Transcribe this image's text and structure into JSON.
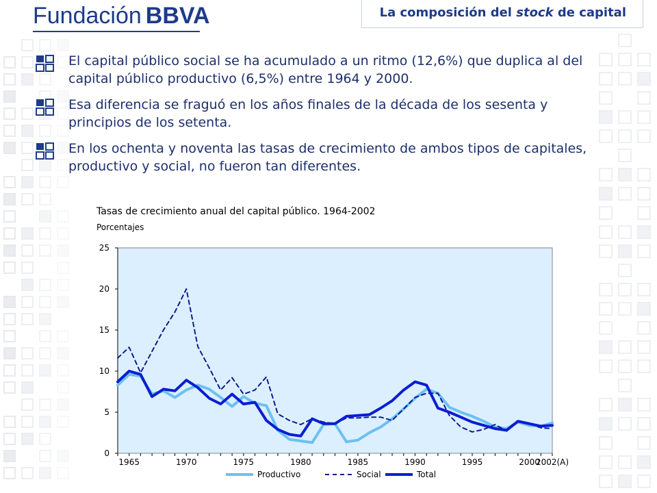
{
  "header": {
    "logo_text": "Fundación",
    "logo_brand": "BBVA",
    "title_pre": "La composición del ",
    "title_em": "stock",
    "title_post": " de capital"
  },
  "bullets": [
    {
      "text": "El capital público social se ha acumulado a un ritmo (12,6%) que duplica al del capital público productivo (6,5%) entre 1964 y 2000."
    },
    {
      "text": "Esa diferencia se fraguó en los años finales de la década de los sesenta y principios de los setenta."
    },
    {
      "text": "En los ochenta y noventa las tasas de crecimiento de ambos tipos de capitales, productivo y social, no fueron tan diferentes."
    }
  ],
  "colors": {
    "brand": "#1d3b8a",
    "plot_bg": "#dcefff",
    "productivo": "#6cc0f0",
    "social": "#0a1e8c",
    "total": "#0a1ed2"
  },
  "chart_data": {
    "type": "line",
    "title": "Tasas de crecimiento anual del capital público. 1964-2002",
    "subtitle": "Porcentajes",
    "xlabel": "",
    "ylabel": "",
    "x": [
      1964,
      1965,
      1966,
      1967,
      1968,
      1969,
      1970,
      1971,
      1972,
      1973,
      1974,
      1975,
      1976,
      1977,
      1978,
      1979,
      1980,
      1981,
      1982,
      1983,
      1984,
      1985,
      1986,
      1987,
      1988,
      1989,
      1990,
      1991,
      1992,
      1993,
      1994,
      1995,
      1996,
      1997,
      1998,
      1999,
      2000,
      2001,
      2002
    ],
    "x_ticks": [
      {
        "value": 1965,
        "label": "1965"
      },
      {
        "value": 1970,
        "label": "1970"
      },
      {
        "value": 1975,
        "label": "1975"
      },
      {
        "value": 1980,
        "label": "1980"
      },
      {
        "value": 1985,
        "label": "1985"
      },
      {
        "value": 1990,
        "label": "1990"
      },
      {
        "value": 1995,
        "label": "1995"
      },
      {
        "value": 2000,
        "label": "2000"
      },
      {
        "value": 2002,
        "label": "2002(A)"
      }
    ],
    "xlim": [
      1964,
      2002
    ],
    "ylim": [
      0,
      25
    ],
    "y_ticks": [
      0,
      5,
      10,
      15,
      20,
      25
    ],
    "legend_position": "bottom",
    "series": [
      {
        "name": "Productivo",
        "style": "solid-light",
        "values": [
          8.3,
          9.6,
          9.4,
          7.2,
          7.6,
          6.8,
          7.7,
          8.3,
          7.8,
          6.8,
          5.7,
          6.9,
          6.1,
          5.8,
          2.8,
          1.7,
          1.5,
          1.3,
          3.5,
          3.6,
          1.4,
          1.6,
          2.5,
          3.2,
          4.2,
          5.4,
          6.7,
          7.8,
          7.3,
          5.6,
          5.0,
          4.5,
          3.9,
          3.2,
          3.0,
          3.8,
          3.4,
          3.3,
          3.7
        ]
      },
      {
        "name": "Social",
        "style": "dashed",
        "values": [
          11.6,
          12.9,
          9.8,
          12.4,
          15.0,
          17.2,
          20.0,
          13.0,
          10.4,
          7.7,
          9.2,
          7.2,
          7.7,
          9.3,
          4.8,
          4.0,
          3.5,
          4.2,
          3.8,
          3.6,
          4.3,
          4.3,
          4.4,
          4.4,
          4.0,
          5.4,
          6.8,
          7.3,
          7.3,
          4.6,
          3.2,
          2.6,
          2.9,
          3.5,
          2.7,
          3.9,
          3.6,
          3.1,
          3.0
        ]
      },
      {
        "name": "Total",
        "style": "solid-thick",
        "values": [
          8.7,
          10.0,
          9.6,
          6.9,
          7.8,
          7.6,
          8.9,
          8.0,
          6.7,
          6.0,
          7.2,
          6.0,
          6.2,
          4.0,
          2.9,
          2.3,
          2.1,
          4.2,
          3.6,
          3.6,
          4.5,
          4.6,
          4.7,
          5.5,
          6.4,
          7.7,
          8.7,
          8.3,
          5.5,
          5.0,
          4.4,
          3.8,
          3.4,
          3.0,
          2.8,
          3.9,
          3.6,
          3.3,
          3.4
        ]
      }
    ]
  }
}
